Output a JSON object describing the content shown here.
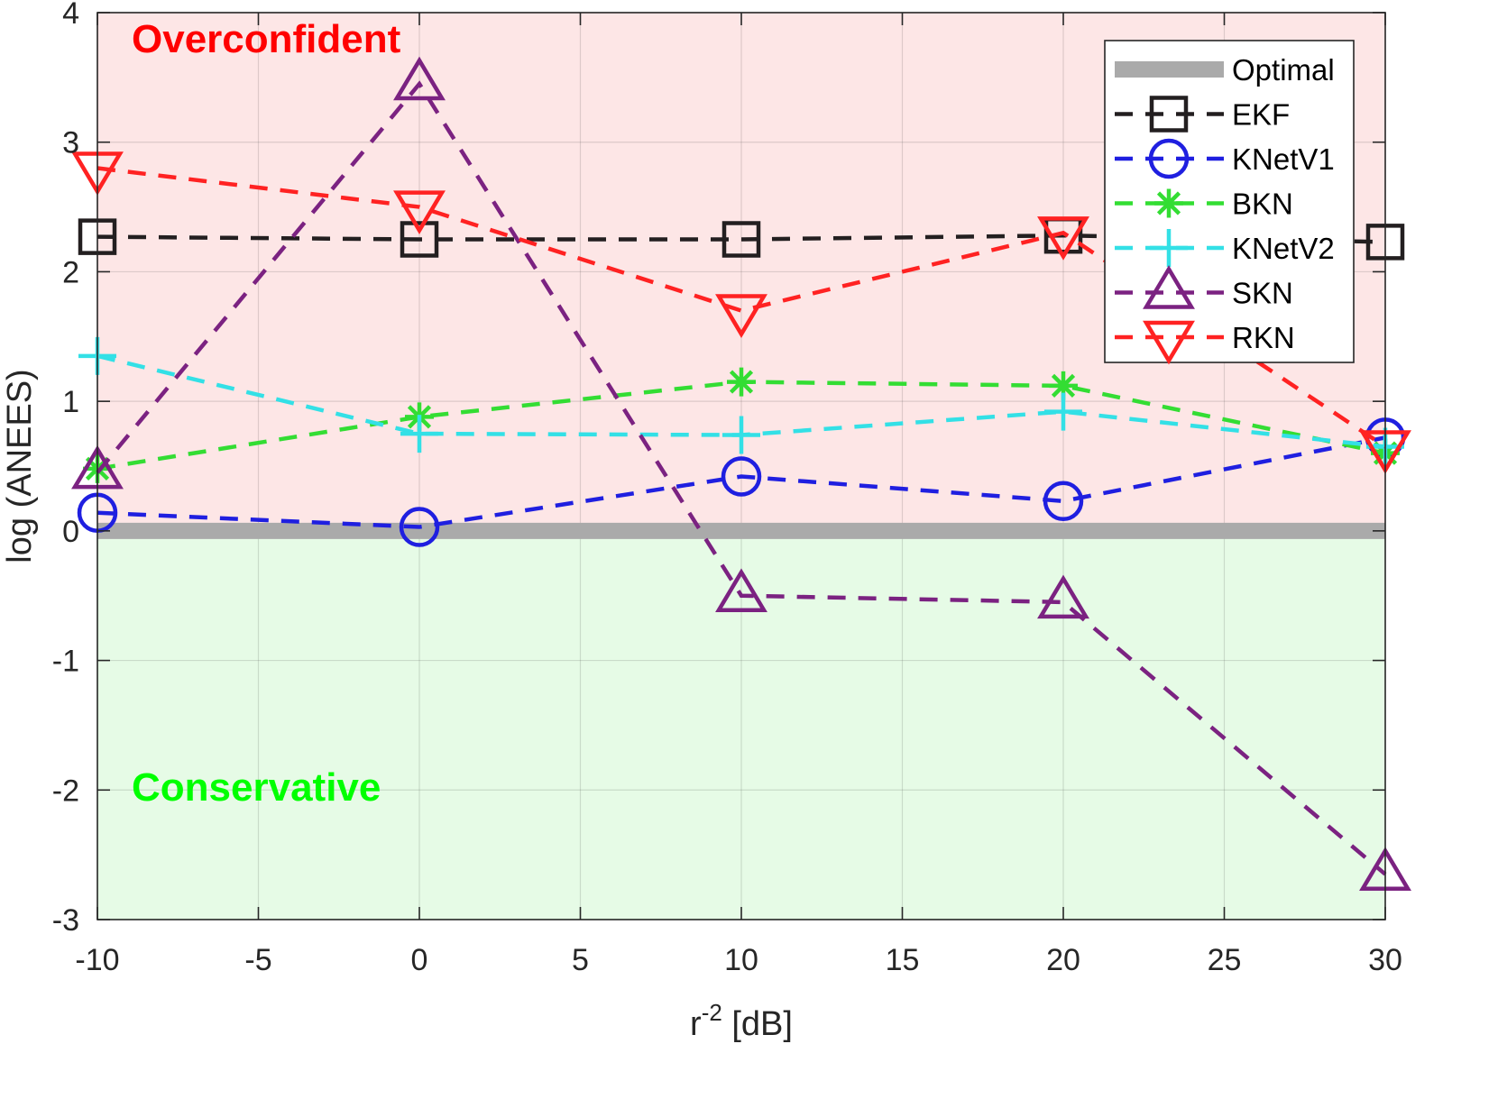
{
  "chart_data": {
    "type": "line",
    "xlabel": "r",
    "xlabel_superscript": "-2",
    "xlabel_unit": " [dB]",
    "ylabel": "log (ANEES)",
    "xlim": [
      -10,
      30
    ],
    "ylim": [
      -3,
      4
    ],
    "x_ticks": [
      -10,
      -5,
      0,
      5,
      10,
      15,
      20,
      25,
      30
    ],
    "y_ticks": [
      -3,
      -2,
      -1,
      0,
      1,
      2,
      3,
      4
    ],
    "grid": true,
    "legend_position": "top-right",
    "x": [
      -10,
      0,
      10,
      20,
      30
    ],
    "regions": [
      {
        "label": "Overconfident",
        "from": 0,
        "to": 4,
        "fill": "#fde6e6",
        "text_color": "#ff0000"
      },
      {
        "label": "Conservative",
        "from": -3,
        "to": 0,
        "fill": "#e6fbe6",
        "text_color": "#00ff00"
      }
    ],
    "optimal": {
      "name": "Optimal",
      "value": 0,
      "color": "#aaaaaa"
    },
    "series": [
      {
        "name": "EKF",
        "color": "#231f20",
        "marker": "square",
        "values": [
          2.27,
          2.25,
          2.25,
          2.28,
          2.23
        ]
      },
      {
        "name": "KNetV1",
        "color": "#1f1fe0",
        "marker": "circle",
        "values": [
          0.14,
          0.03,
          0.42,
          0.23,
          0.72
        ]
      },
      {
        "name": "BKN",
        "color": "#33dd33",
        "marker": "asterisk",
        "values": [
          0.48,
          0.88,
          1.15,
          1.12,
          0.6
        ]
      },
      {
        "name": "KNetV2",
        "color": "#33e0e6",
        "marker": "plus",
        "values": [
          1.35,
          0.75,
          0.74,
          0.92,
          0.65
        ]
      },
      {
        "name": "SKN",
        "color": "#7b2281",
        "marker": "triangle-up",
        "values": [
          0.45,
          3.45,
          -0.5,
          -0.55,
          -2.65
        ]
      },
      {
        "name": "RKN",
        "color": "#ff2222",
        "marker": "triangle-down",
        "values": [
          2.8,
          2.5,
          1.7,
          2.3,
          0.65
        ]
      }
    ]
  }
}
